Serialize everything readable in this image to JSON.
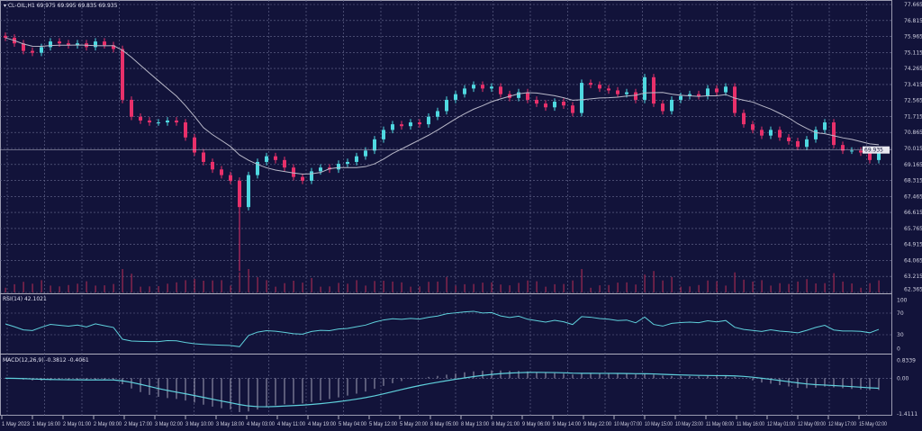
{
  "header": {
    "symbol": "CL-OIL,H1",
    "values": "69.975 69.995 69.835 69.935"
  },
  "rsi_label": "RSI(14) 42.1021",
  "macd_label": "MACD(12,26,9) -0.3812 -0.4061",
  "current_price": "69.935",
  "colors": {
    "background": "#12133a",
    "bull": "#4fd8e0",
    "bear": "#e8306a",
    "ma": "#b8b8c8",
    "grid": "#6a6c90",
    "indicator": "#5fd0dc"
  },
  "chart_data": {
    "type": "candlestick",
    "price_axis": {
      "ylim": [
        62.365,
        77.665
      ],
      "ticks": [
        "77.665",
        "76.815",
        "75.965",
        "75.115",
        "74.265",
        "73.415",
        "72.565",
        "71.715",
        "70.865",
        "70.015",
        "69.165",
        "68.315",
        "67.465",
        "66.615",
        "65.765",
        "64.915",
        "64.065",
        "63.215",
        "62.365"
      ]
    },
    "time_ticks": [
      "1 May 2023",
      "1 May 16:00",
      "2 May 01:00",
      "2 May 09:00",
      "2 May 17:00",
      "3 May 02:00",
      "3 May 10:00",
      "3 May 18:00",
      "4 May 03:00",
      "4 May 11:00",
      "4 May 19:00",
      "5 May 04:00",
      "5 May 12:00",
      "5 May 20:00",
      "8 May 05:00",
      "8 May 13:00",
      "8 May 21:00",
      "9 May 06:00",
      "9 May 14:00",
      "9 May 22:00",
      "10 May 07:00",
      "10 May 15:00",
      "10 May 23:00",
      "11 May 08:00",
      "11 May 16:00",
      "12 May 01:00",
      "12 May 09:00",
      "12 May 17:00",
      "15 May 02:00"
    ],
    "close": [
      75.9,
      75.6,
      75.2,
      75.1,
      75.4,
      75.7,
      75.6,
      75.5,
      75.6,
      75.4,
      75.7,
      75.5,
      75.3,
      72.6,
      71.7,
      71.5,
      71.4,
      71.4,
      71.5,
      71.4,
      70.6,
      69.8,
      69.3,
      68.9,
      68.6,
      68.3,
      66.9,
      68.6,
      69.3,
      69.6,
      69.4,
      69.0,
      68.5,
      68.3,
      68.8,
      69.0,
      68.9,
      69.2,
      69.3,
      69.6,
      69.9,
      70.5,
      71.0,
      71.3,
      71.2,
      71.4,
      71.3,
      71.7,
      72.0,
      72.6,
      72.9,
      73.2,
      73.4,
      73.2,
      73.3,
      72.9,
      72.7,
      73.0,
      72.6,
      72.4,
      72.2,
      72.5,
      72.3,
      71.9,
      73.5,
      73.4,
      73.2,
      73.1,
      72.9,
      73.0,
      72.6,
      73.8,
      72.4,
      72.0,
      72.6,
      72.8,
      72.9,
      72.8,
      73.2,
      73.0,
      73.3,
      71.9,
      71.3,
      71.0,
      70.7,
      71.0,
      70.6,
      70.4,
      70.1,
      70.5,
      71.0,
      71.4,
      70.2,
      69.9,
      69.9,
      69.8,
      69.4,
      69.935
    ],
    "wick_low": {
      "index": 26,
      "value": 63.5
    },
    "rsi": {
      "ylim": [
        0,
        100
      ],
      "ticks": [
        "100",
        "70",
        "30",
        "0"
      ]
    },
    "macd": {
      "ylim": [
        -1.4111,
        0.8339
      ],
      "ticks": [
        "0.8339",
        "0.00",
        "-1.4111"
      ]
    }
  }
}
